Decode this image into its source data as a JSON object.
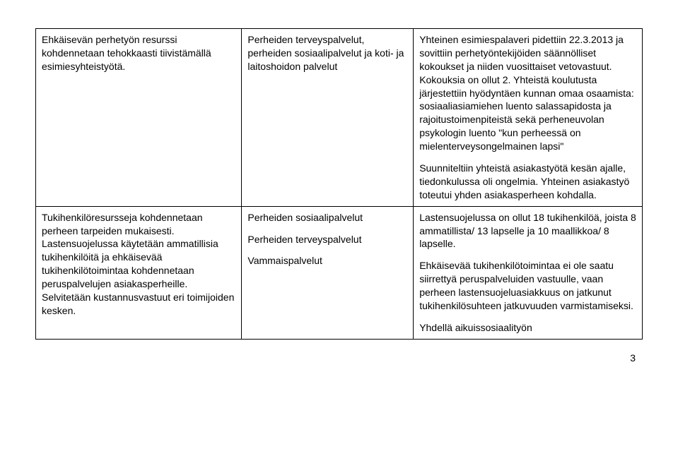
{
  "table": {
    "rows": [
      {
        "col1": [
          "Ehkäisevän perhetyön resurssi kohdennetaan tehokkaasti tiivistämällä esimiesyhteistyötä."
        ],
        "col2": [
          "Perheiden terveyspalvelut, perheiden sosiaalipalvelut ja koti- ja laitoshoidon palvelut"
        ],
        "col3": [
          "Yhteinen esimiespalaveri pidettiin 22.3.2013 ja sovittiin perhetyöntekijöiden säännölliset kokoukset ja niiden vuosittaiset vetovastuut. Kokouksia on ollut 2. Yhteistä koulutusta järjestettiin hyödyntäen kunnan omaa osaamista: sosiaaliasiamiehen luento salassapidosta ja rajoitustoimenpiteistä sekä perheneuvolan psykologin luento \"kun perheessä on mielenterveysongelmainen lapsi\"",
          "Suunniteltiin yhteistä asiakastyötä kesän ajalle, tiedonkulussa oli ongelmia. Yhteinen asiakastyö toteutui yhden asiakasperheen kohdalla."
        ]
      },
      {
        "col1": [
          "Tukihenkilöresursseja kohdennetaan perheen tarpeiden mukaisesti. Lastensuojelussa käytetään ammatillisia tukihenkilöitä ja ehkäisevää tukihenkilötoimintaa kohdennetaan peruspalvelujen asiakasperheille. Selvitetään kustannusvastuut eri toimijoiden kesken."
        ],
        "col2": [
          "Perheiden sosiaalipalvelut",
          "Perheiden terveyspalvelut",
          "Vammaispalvelut"
        ],
        "col3": [
          "Lastensuojelussa on ollut 18 tukihenkilöä, joista 8 ammatillista/ 13 lapselle ja 10 maallikkoa/ 8 lapselle.",
          "Ehkäisevää tukihenkilötoimintaa ei ole saatu siirrettyä peruspalveluiden vastuulle, vaan perheen lastensuojeluasiakkuus on jatkunut tukihenkilösuhteen jatkuvuuden varmistamiseksi.",
          "Yhdellä aikuissosiaalityön"
        ]
      }
    ]
  },
  "page_number": "3"
}
